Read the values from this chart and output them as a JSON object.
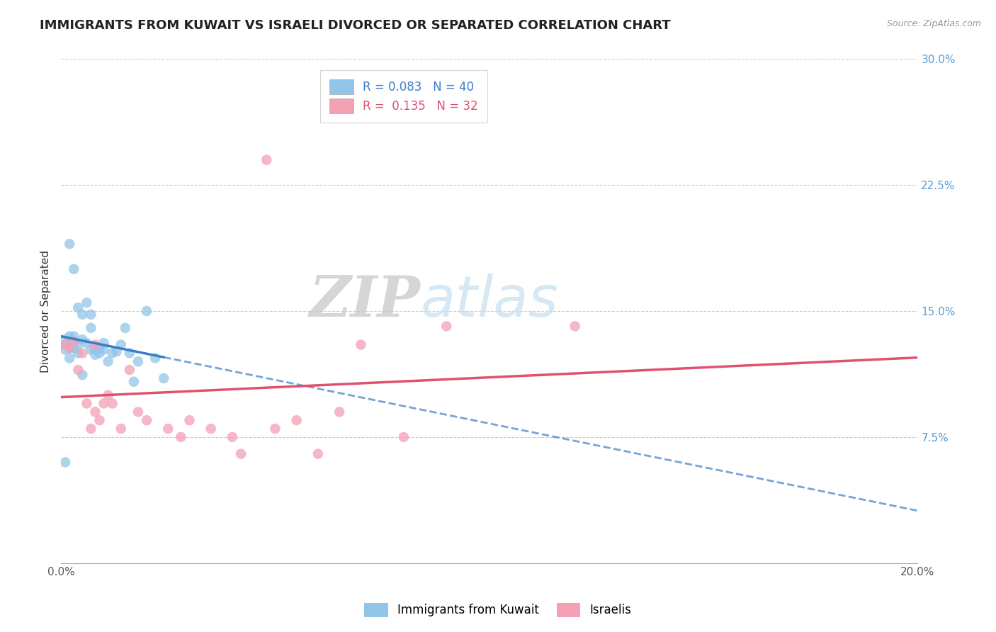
{
  "title": "IMMIGRANTS FROM KUWAIT VS ISRAELI DIVORCED OR SEPARATED CORRELATION CHART",
  "source": "Source: ZipAtlas.com",
  "ylabel": "Divorced or Separated",
  "xlim": [
    0.0,
    0.2
  ],
  "ylim": [
    0.0,
    0.3
  ],
  "yticks_right": [
    0.075,
    0.15,
    0.225,
    0.3
  ],
  "yticklabels_right": [
    "7.5%",
    "15.0%",
    "22.5%",
    "30.0%"
  ],
  "blue_R": 0.083,
  "blue_N": 40,
  "pink_R": 0.135,
  "pink_N": 32,
  "blue_color": "#92C5E8",
  "pink_color": "#F4A0B5",
  "blue_line_color": "#3A7EC6",
  "pink_line_color": "#E05070",
  "legend_label_blue": "Immigrants from Kuwait",
  "legend_label_pink": "Israelis",
  "watermark_zip": "ZIP",
  "watermark_atlas": "atlas",
  "blue_x": [
    0.001,
    0.001,
    0.001,
    0.002,
    0.002,
    0.002,
    0.002,
    0.003,
    0.003,
    0.003,
    0.003,
    0.004,
    0.004,
    0.004,
    0.005,
    0.005,
    0.005,
    0.006,
    0.006,
    0.007,
    0.007,
    0.007,
    0.008,
    0.008,
    0.009,
    0.009,
    0.01,
    0.01,
    0.011,
    0.012,
    0.013,
    0.014,
    0.015,
    0.016,
    0.017,
    0.018,
    0.02,
    0.022,
    0.024,
    0.001
  ],
  "blue_y": [
    0.13,
    0.127,
    0.133,
    0.135,
    0.128,
    0.122,
    0.19,
    0.132,
    0.135,
    0.128,
    0.175,
    0.13,
    0.125,
    0.152,
    0.133,
    0.148,
    0.112,
    0.131,
    0.155,
    0.148,
    0.127,
    0.14,
    0.124,
    0.127,
    0.125,
    0.128,
    0.131,
    0.127,
    0.12,
    0.125,
    0.126,
    0.13,
    0.14,
    0.125,
    0.108,
    0.12,
    0.15,
    0.122,
    0.11,
    0.06
  ],
  "pink_x": [
    0.001,
    0.002,
    0.003,
    0.004,
    0.005,
    0.006,
    0.007,
    0.008,
    0.008,
    0.009,
    0.01,
    0.011,
    0.012,
    0.014,
    0.016,
    0.018,
    0.02,
    0.025,
    0.028,
    0.03,
    0.035,
    0.04,
    0.042,
    0.05,
    0.055,
    0.06,
    0.065,
    0.07,
    0.08,
    0.09,
    0.12,
    0.048
  ],
  "pink_y": [
    0.13,
    0.128,
    0.132,
    0.115,
    0.125,
    0.095,
    0.08,
    0.09,
    0.13,
    0.085,
    0.095,
    0.1,
    0.095,
    0.08,
    0.115,
    0.09,
    0.085,
    0.08,
    0.075,
    0.085,
    0.08,
    0.075,
    0.065,
    0.08,
    0.085,
    0.065,
    0.09,
    0.13,
    0.075,
    0.141,
    0.141,
    0.24
  ],
  "title_fontsize": 13,
  "axis_label_fontsize": 11,
  "tick_fontsize": 11,
  "legend_fontsize": 12
}
